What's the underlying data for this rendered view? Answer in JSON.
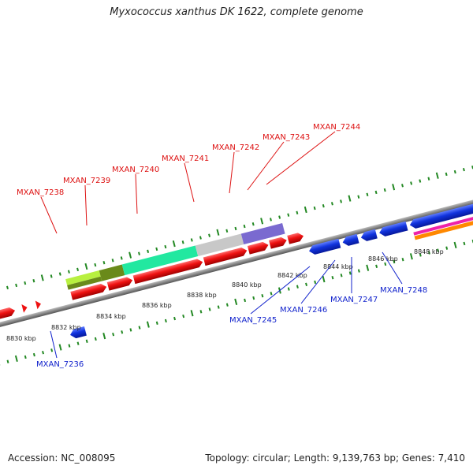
{
  "title": "Myxococcus xanthus DK 1622, complete genome",
  "footer": {
    "accession": "Accession: NC_008095",
    "summary": "Topology: circular; Length: 9,139,763 bp; Genes: 7,410"
  },
  "colors": {
    "forward_gene": "#ee1111",
    "reverse_gene": "#1133dd",
    "backbone": "#888888",
    "tick": "#228822",
    "forward_label": "#dd1111",
    "reverse_label": "#1122cc"
  },
  "scale_labels": [
    "8830 kbp",
    "8832 kbp",
    "8834 kbp",
    "8836 kbp",
    "8838 kbp",
    "8840 kbp",
    "8842 kbp",
    "8844 kbp",
    "8846 kbp",
    "8848 kbp"
  ],
  "forward_gene_labels": [
    "MXAN_7238",
    "MXAN_7239",
    "MXAN_7240",
    "MXAN_7241",
    "MXAN_7242",
    "MXAN_7243",
    "MXAN_7244"
  ],
  "reverse_gene_labels": [
    "MXAN_7236",
    "MXAN_7245",
    "MXAN_7246",
    "MXAN_7247",
    "MXAN_7248"
  ],
  "feature_colors": [
    "#b8f040",
    "#6a8a1a",
    "#22e8a0",
    "#c8c8c8",
    "#7a6ad0",
    "#ee22aa",
    "#ff8800"
  ]
}
